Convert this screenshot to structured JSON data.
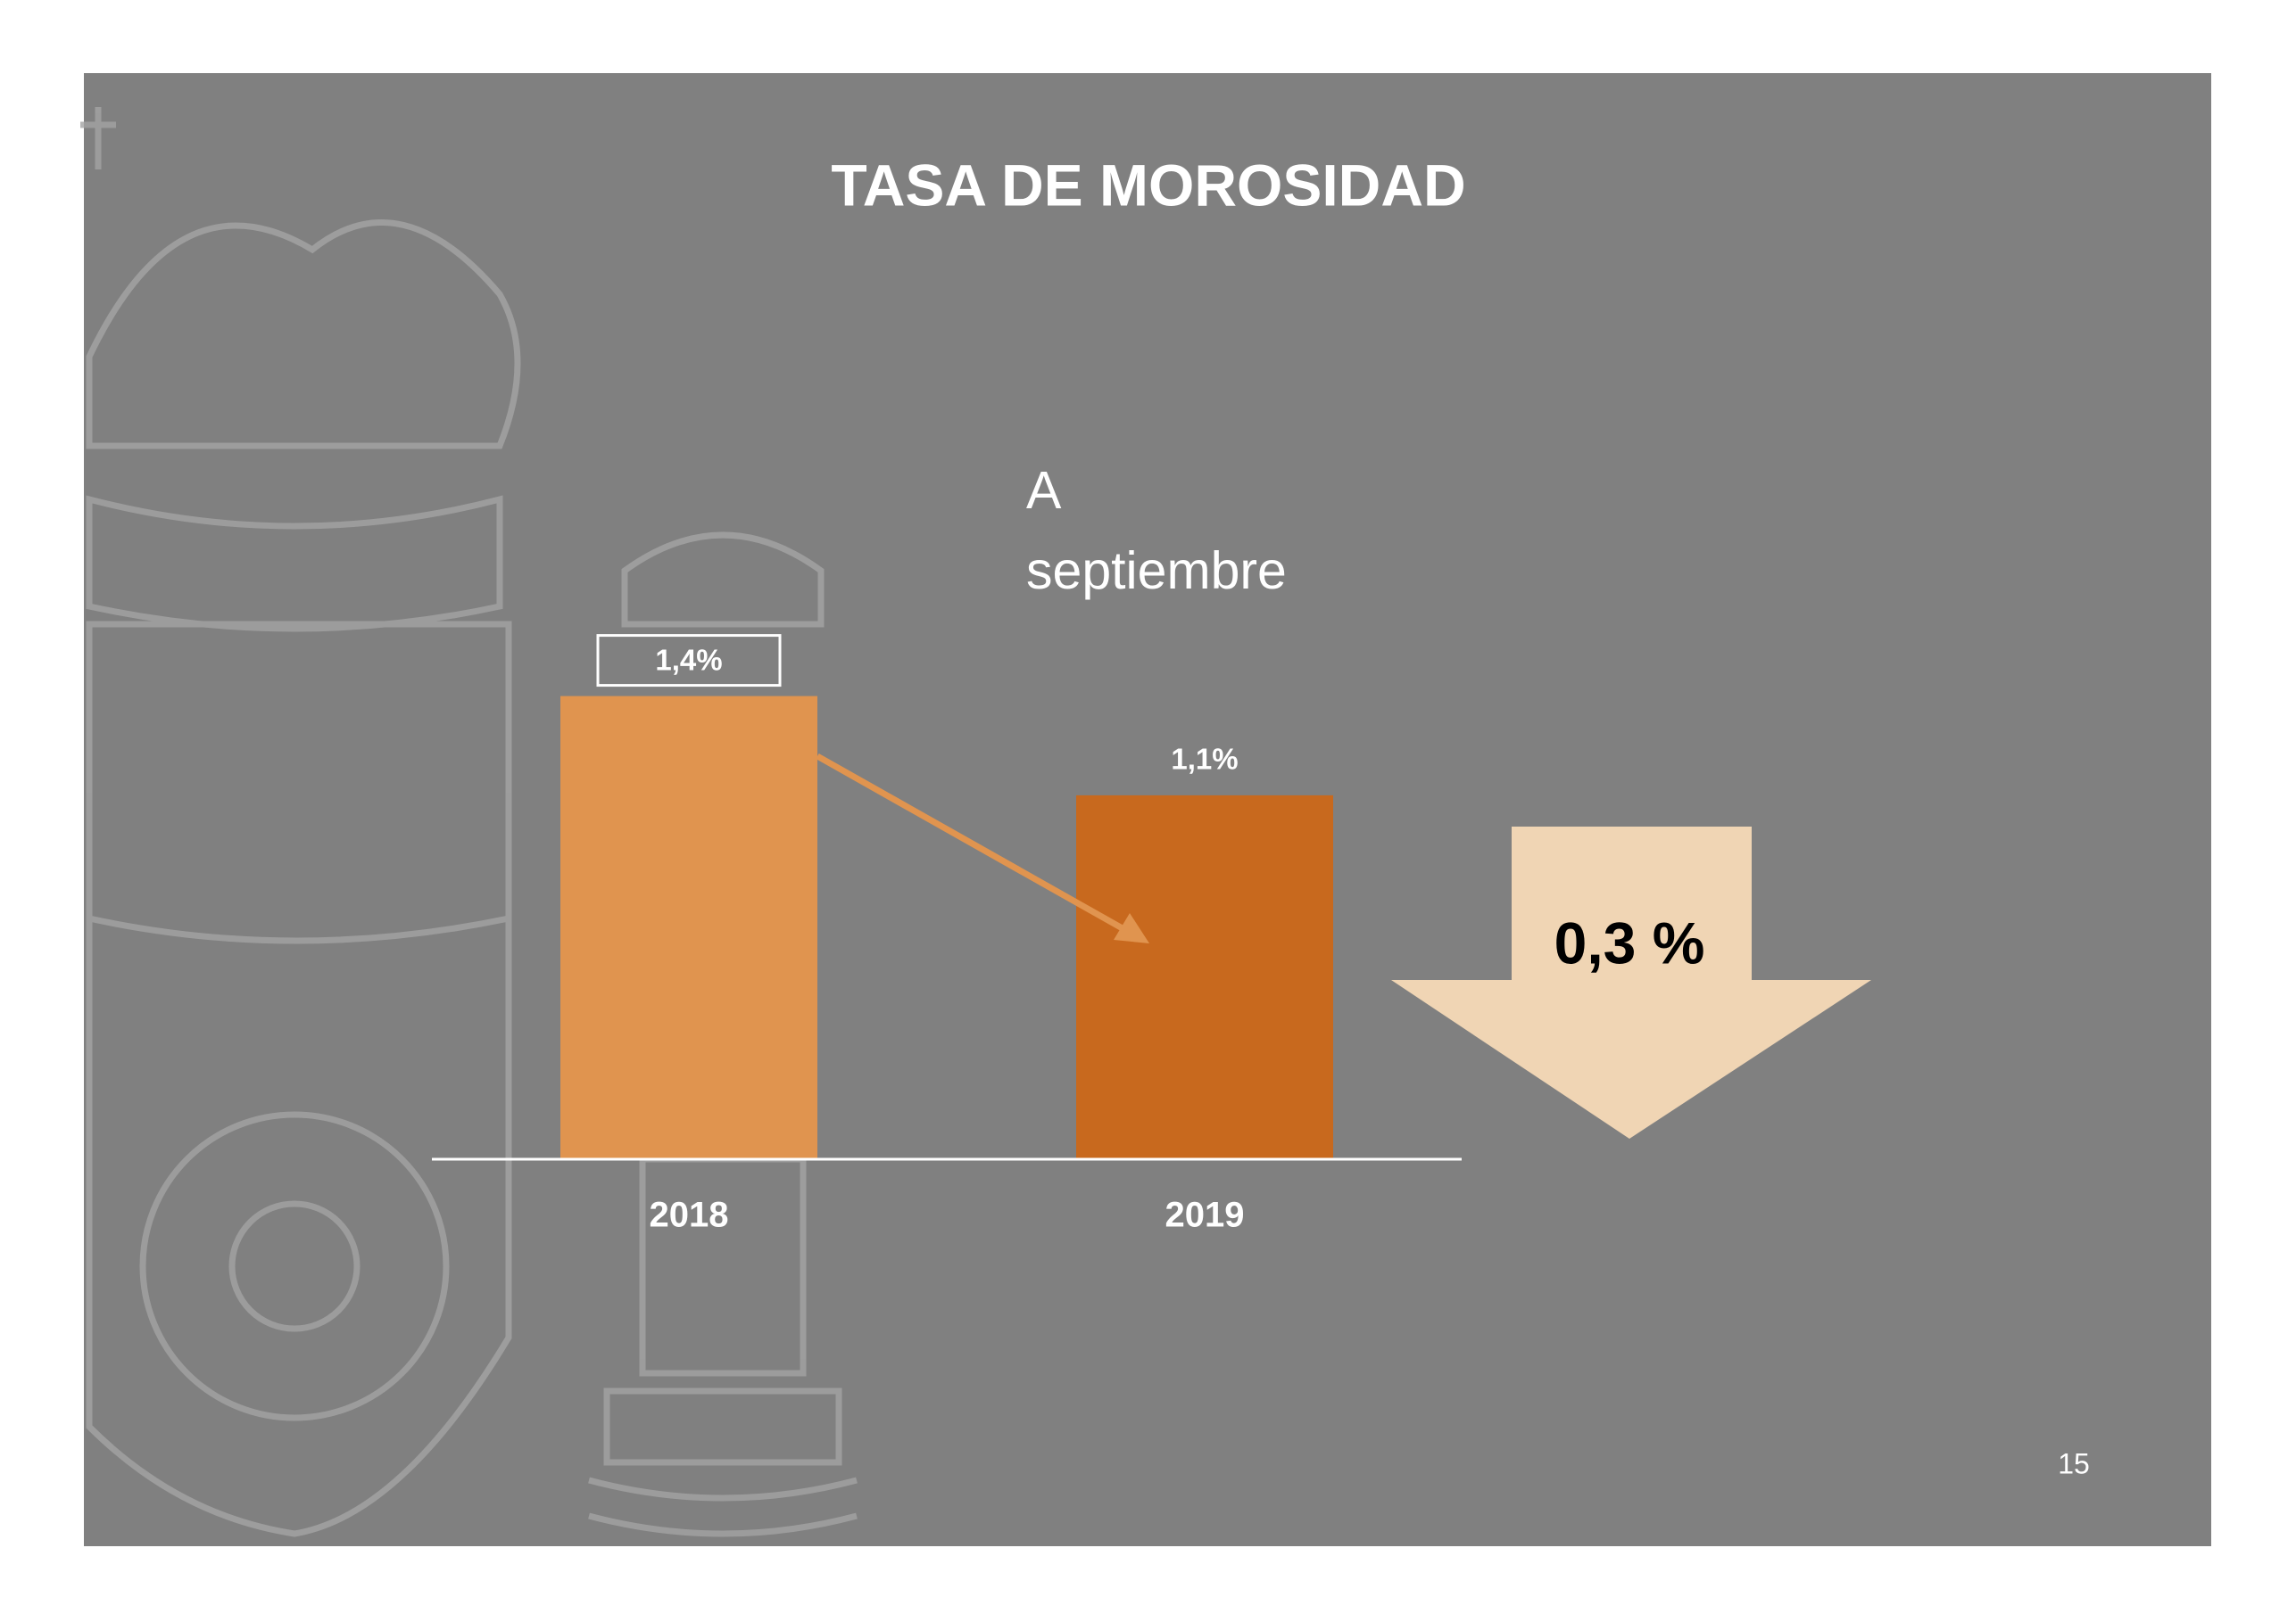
{
  "chart_data": {
    "type": "bar",
    "title": "TASA DE MOROSIDAD",
    "subtitle": "A septiembre",
    "categories": [
      "2018",
      "2019"
    ],
    "values": [
      1.4,
      1.1
    ],
    "value_labels": [
      "1,4%",
      "1,1%"
    ],
    "colors": [
      "#e0944f",
      "#c8691e"
    ],
    "annotation": "0,3 %"
  },
  "page_number": "15"
}
